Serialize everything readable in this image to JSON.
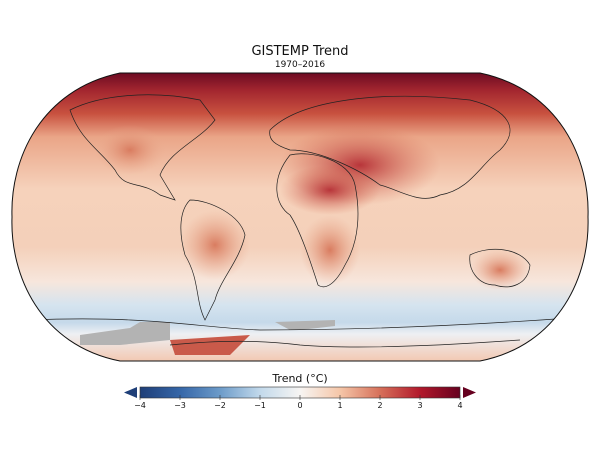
{
  "title": "GISTEMP Trend",
  "subtitle": "1970–2016",
  "colorbar": {
    "label": "Trend (°C)",
    "min": -4,
    "max": 4,
    "ticks": [
      "−4",
      "−3",
      "−2",
      "−1",
      "0",
      "1",
      "2",
      "3",
      "4"
    ],
    "colormap": "RdBu_r",
    "extend": "both",
    "colors": {
      "low": "#1f3f78",
      "mid": "#f7f5f3",
      "high": "#66001f"
    }
  },
  "map": {
    "projection": "Robinson",
    "missing_data_color": "#b3b3b3"
  }
}
